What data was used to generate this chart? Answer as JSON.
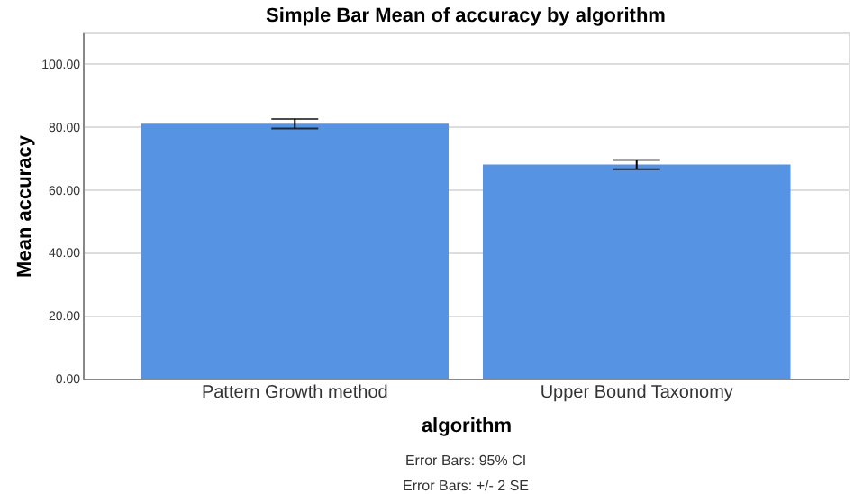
{
  "chart_data": {
    "type": "bar",
    "title": "Simple Bar Mean of accuracy by algorithm",
    "xlabel": "algorithm",
    "ylabel": "Mean accuracy",
    "categories": [
      "Pattern Growth method",
      "Upper Bound Taxonomy"
    ],
    "values": [
      81,
      68
    ],
    "color": "#5693e2",
    "errors": [
      [
        79.5,
        82.5
      ],
      [
        66.5,
        69.5
      ]
    ],
    "ylim": [
      0,
      110
    ],
    "yticks": [
      {
        "value": 0,
        "label": "0.00"
      },
      {
        "value": 20,
        "label": "20.00"
      },
      {
        "value": 40,
        "label": "40.00"
      },
      {
        "value": 60,
        "label": "60.00"
      },
      {
        "value": 80,
        "label": "80.00"
      },
      {
        "value": 100,
        "label": "100.00"
      }
    ],
    "grid": "y",
    "annotations": [
      "Error Bars: 95% CI",
      "Error Bars: +/- 2 SE"
    ]
  }
}
